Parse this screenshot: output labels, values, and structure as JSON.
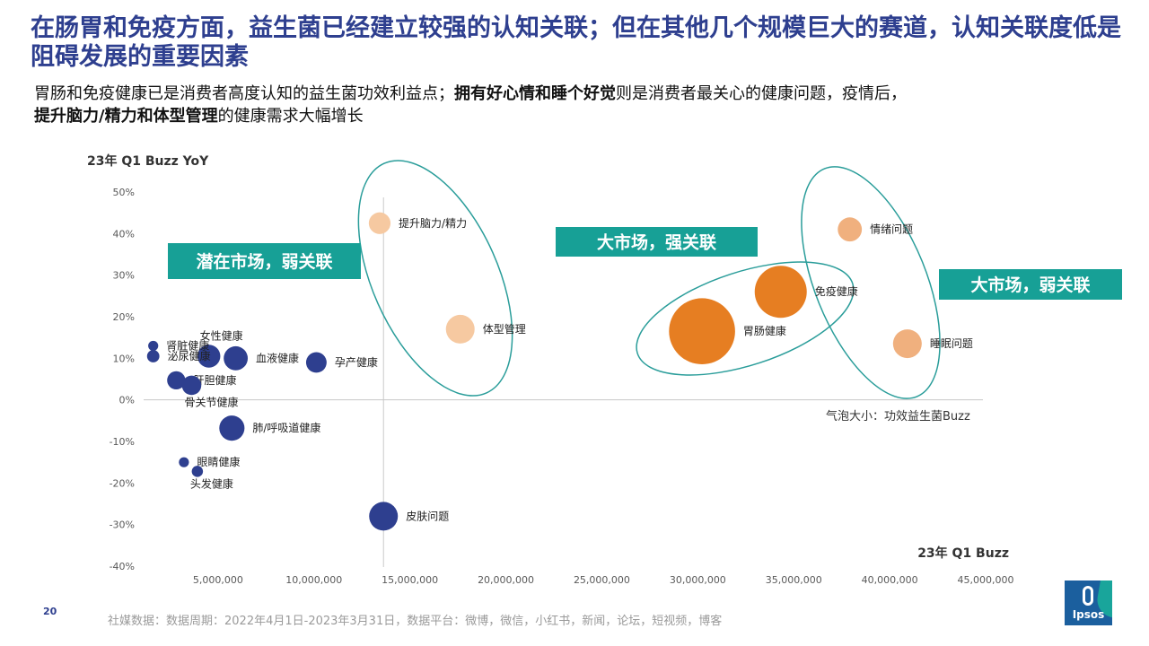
{
  "header": {
    "title": "在肠胃和免疫方面，益生菌已经建立较强的认知关联；但在其他几个规模巨大的赛道，认知关联度低是阻碍发展的重要因素",
    "subtitle_parts": [
      "胃肠和免疫健康已是消费者高度认知的益生菌功效利益点；",
      "拥有好心情和睡个好觉",
      "则是消费者最关心的健康问题，疫情后，",
      "提升脑力/精力和体型管理",
      "的健康需求大幅增长"
    ]
  },
  "colors": {
    "title": "#2e3f8f",
    "dark_blue": "#2e3f8f",
    "orange": "#e67e22",
    "light_orange": "#f0b07e",
    "pale_orange": "#f6c9a1",
    "teal": "#17a096",
    "ellipse": "#2a9d9a"
  },
  "chart_data": {
    "type": "scatter",
    "xlabel": "23年 Q1 Buzz",
    "ylabel": "23年 Q1 Buzz YoY",
    "xlim": [
      0,
      45000000
    ],
    "ylim": [
      -0.4,
      0.5
    ],
    "x_ticks": [
      5000000,
      10000000,
      15000000,
      20000000,
      25000000,
      30000000,
      35000000,
      40000000,
      45000000
    ],
    "x_tick_labels": [
      "5,000,000",
      "10,000,000",
      "15,000,000",
      "20,000,000",
      "25,000,000",
      "30,000,000",
      "35,000,000",
      "40,000,000",
      "45,000,000"
    ],
    "y_ticks": [
      -0.4,
      -0.3,
      -0.2,
      -0.1,
      0,
      0.1,
      0.2,
      0.3,
      0.4,
      0.5
    ],
    "y_tick_labels": [
      "-40%",
      "-30%",
      "-20%",
      "-10%",
      "0%",
      "10%",
      "20%",
      "30%",
      "40%",
      "50%"
    ],
    "size_note": "气泡大小：功效益生菌Buzz",
    "points": [
      {
        "label": "提升脑力/精力",
        "x": 12300000,
        "y": 0.425,
        "size": 0.7,
        "color": "pale_orange",
        "label_side": "right"
      },
      {
        "label": "体型管理",
        "x": 16500000,
        "y": 0.17,
        "size": 1.0,
        "color": "pale_orange",
        "label_side": "right"
      },
      {
        "label": "情绪问题",
        "x": 36800000,
        "y": 0.41,
        "size": 0.8,
        "color": "light_orange",
        "label_side": "right"
      },
      {
        "label": "免疫健康",
        "x": 33200000,
        "y": 0.26,
        "size": 2.0,
        "color": "orange",
        "label_side": "right"
      },
      {
        "label": "胃肠健康",
        "x": 29100000,
        "y": 0.165,
        "size": 2.6,
        "color": "orange",
        "label_side": "right"
      },
      {
        "label": "睡眠问题",
        "x": 39800000,
        "y": 0.135,
        "size": 1.0,
        "color": "light_orange",
        "label_side": "right"
      },
      {
        "label": "孕产健康",
        "x": 9000000,
        "y": 0.09,
        "size": 0.65,
        "color": "dark_blue",
        "label_side": "right"
      },
      {
        "label": "血液健康",
        "x": 4800000,
        "y": 0.1,
        "size": 0.8,
        "color": "dark_blue",
        "label_side": "right"
      },
      {
        "label": "女性健康",
        "x": 3400000,
        "y": 0.105,
        "size": 0.75,
        "color": "dark_blue",
        "label_side": "above"
      },
      {
        "label": "肾脏健康",
        "x": 500000,
        "y": 0.13,
        "size": 0.2,
        "color": "dark_blue",
        "label_side": "right"
      },
      {
        "label": "泌尿健康",
        "x": 500000,
        "y": 0.105,
        "size": 0.3,
        "color": "dark_blue",
        "label_side": "right"
      },
      {
        "label": "肝胆健康",
        "x": 1700000,
        "y": 0.047,
        "size": 0.55,
        "color": "dark_blue",
        "label_side": "right"
      },
      {
        "label": "骨关节健康",
        "x": 2500000,
        "y": 0.035,
        "size": 0.6,
        "color": "dark_blue",
        "label_side": "below"
      },
      {
        "label": "肺/呼吸道健康",
        "x": 4600000,
        "y": -0.068,
        "size": 0.85,
        "color": "dark_blue",
        "label_side": "right"
      },
      {
        "label": "眼睛健康",
        "x": 2100000,
        "y": -0.15,
        "size": 0.2,
        "color": "dark_blue",
        "label_side": "right"
      },
      {
        "label": "头发健康",
        "x": 2800000,
        "y": -0.172,
        "size": 0.25,
        "color": "dark_blue",
        "label_side": "below"
      },
      {
        "label": "皮肤问题",
        "x": 12500000,
        "y": -0.28,
        "size": 1.0,
        "color": "dark_blue",
        "label_side": "right"
      }
    ],
    "annotations": [
      {
        "text": "潜在市场，弱关联"
      },
      {
        "text": "大市场，强关联"
      },
      {
        "text": "大市场，弱关联"
      }
    ]
  },
  "footer": {
    "page_number": "20",
    "source": "社媒数据：数据周期：2022年4月1日-2023年3月31日，数据平台：微博，微信，小红书，新闻，论坛，短视频，博客",
    "logo_text": "Ipsos"
  }
}
